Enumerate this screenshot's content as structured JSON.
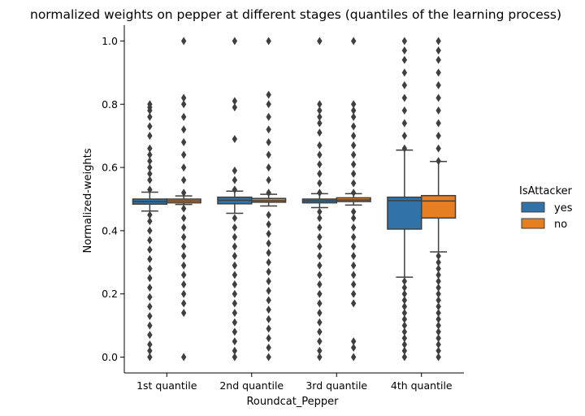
{
  "chart_data": {
    "type": "boxplot",
    "title": "normalized weights on pepper at different stages (quantiles of the learning process)",
    "xlabel": "Roundcat_Pepper",
    "ylabel": "Normalized-weights",
    "ylim": [
      -0.05,
      1.05
    ],
    "yticks": [
      "0.0",
      "0.2",
      "0.4",
      "0.6",
      "0.8",
      "1.0"
    ],
    "categories": [
      "1st quantile",
      "2nd quantile",
      "3rd quantile",
      "4th quantile"
    ],
    "legend": {
      "title": "IsAttacker",
      "position": "right",
      "entries": [
        {
          "label": "yes",
          "color": "#2f73a8"
        },
        {
          "label": "no",
          "color": "#e67f22"
        }
      ]
    },
    "series": [
      {
        "name": "yes",
        "color": "#2f73a8",
        "boxes": [
          {
            "q1": 0.484,
            "median": 0.492,
            "q3": 0.5,
            "whisker_low": 0.462,
            "whisker_high": 0.522,
            "outliers_high": [
              0.53,
              0.56,
              0.58,
              0.6,
              0.62,
              0.64,
              0.66,
              0.7,
              0.73,
              0.76,
              0.78,
              0.79,
              0.8
            ],
            "outliers_low": [
              0.0,
              0.02,
              0.04,
              0.07,
              0.1,
              0.13,
              0.16,
              0.19,
              0.22,
              0.25,
              0.28,
              0.31,
              0.34,
              0.37,
              0.4,
              0.43,
              0.45
            ]
          },
          {
            "q1": 0.485,
            "median": 0.496,
            "q3": 0.506,
            "whisker_low": 0.455,
            "whisker_high": 0.525,
            "outliers_high": [
              0.53,
              0.56,
              0.59,
              0.69,
              0.79,
              0.81,
              1.0
            ],
            "outliers_low": [
              0.0,
              0.02,
              0.05,
              0.08,
              0.11,
              0.14,
              0.17,
              0.2,
              0.23,
              0.26,
              0.29,
              0.32,
              0.35,
              0.38,
              0.41,
              0.44
            ]
          },
          {
            "q1": 0.488,
            "median": 0.494,
            "q3": 0.5,
            "whisker_low": 0.473,
            "whisker_high": 0.517,
            "outliers_high": [
              0.52,
              0.55,
              0.58,
              0.61,
              0.64,
              0.67,
              0.71,
              0.74,
              0.76,
              0.78,
              0.8,
              1.0
            ],
            "outliers_low": [
              0.0,
              0.02,
              0.05,
              0.08,
              0.11,
              0.14,
              0.17,
              0.2,
              0.23,
              0.26,
              0.29,
              0.32,
              0.35,
              0.38,
              0.41,
              0.44,
              0.46
            ]
          },
          {
            "q1": 0.405,
            "median": 0.495,
            "q3": 0.506,
            "whisker_low": 0.253,
            "whisker_high": 0.655,
            "outliers_high": [
              0.66,
              0.7,
              0.74,
              0.78,
              0.82,
              0.86,
              0.9,
              0.94,
              0.97,
              1.0
            ],
            "outliers_low": [
              0.0,
              0.02,
              0.04,
              0.06,
              0.08,
              0.1,
              0.12,
              0.14,
              0.16,
              0.18,
              0.2,
              0.22,
              0.24
            ]
          }
        ]
      },
      {
        "name": "no",
        "color": "#e67f22",
        "boxes": [
          {
            "q1": 0.488,
            "median": 0.494,
            "q3": 0.5,
            "whisker_low": 0.483,
            "whisker_high": 0.51,
            "outliers_high": [
              0.52,
              0.56,
              0.6,
              0.64,
              0.68,
              0.72,
              0.76,
              0.8,
              0.82,
              1.0
            ],
            "outliers_low": [
              0.0,
              0.14,
              0.17,
              0.2,
              0.23,
              0.26,
              0.29,
              0.32,
              0.35,
              0.38,
              0.41,
              0.44,
              0.47
            ]
          },
          {
            "q1": 0.49,
            "median": 0.495,
            "q3": 0.502,
            "whisker_low": 0.478,
            "whisker_high": 0.515,
            "outliers_high": [
              0.52,
              0.56,
              0.6,
              0.64,
              0.68,
              0.72,
              0.76,
              0.8,
              0.83,
              1.0
            ],
            "outliers_low": [
              0.0,
              0.03,
              0.06,
              0.09,
              0.12,
              0.15,
              0.18,
              0.21,
              0.24,
              0.27,
              0.3,
              0.33,
              0.36,
              0.39,
              0.42,
              0.45
            ]
          },
          {
            "q1": 0.492,
            "median": 0.497,
            "q3": 0.504,
            "whisker_low": 0.481,
            "whisker_high": 0.517,
            "outliers_high": [
              0.52,
              0.55,
              0.58,
              0.61,
              0.64,
              0.67,
              0.7,
              0.73,
              0.76,
              0.78,
              0.8,
              1.0
            ],
            "outliers_low": [
              0.0,
              0.03,
              0.05,
              0.17,
              0.2,
              0.23,
              0.26,
              0.29,
              0.32,
              0.35,
              0.38,
              0.41,
              0.44,
              0.46
            ]
          },
          {
            "q1": 0.44,
            "median": 0.494,
            "q3": 0.511,
            "whisker_low": 0.333,
            "whisker_high": 0.619,
            "outliers_high": [
              0.62,
              0.66,
              0.7,
              0.74,
              0.78,
              0.82,
              0.86,
              0.9,
              0.94,
              0.97,
              1.0
            ],
            "outliers_low": [
              0.0,
              0.02,
              0.04,
              0.06,
              0.08,
              0.1,
              0.12,
              0.14,
              0.16,
              0.18,
              0.2,
              0.22,
              0.24,
              0.26,
              0.28,
              0.3,
              0.32
            ]
          }
        ]
      }
    ]
  }
}
